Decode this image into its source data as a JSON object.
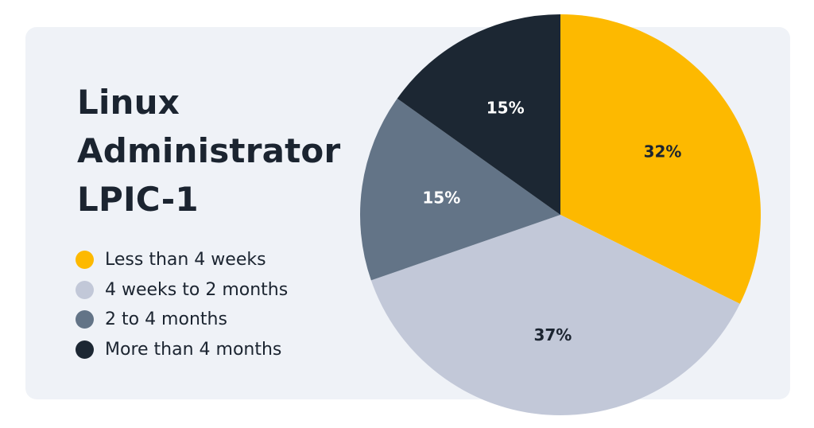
{
  "chart_data": {
    "type": "pie",
    "title": [
      "Linux",
      "Administrator",
      "LPIC-1"
    ],
    "slices": [
      {
        "label": "Less than 4 weeks",
        "value": 32,
        "display": "32%",
        "color": "#fdb900",
        "text_color": "#1b2430"
      },
      {
        "label": "4 weeks to 2 months",
        "value": 37,
        "display": "37%",
        "color": "#c2c8d8",
        "text_color": "#1b2430"
      },
      {
        "label": "2 to 4 months",
        "value": 15,
        "display": "15%",
        "color": "#637487",
        "text_color": "#ffffff"
      },
      {
        "label": "More than 4 months",
        "value": 15,
        "display": "15%",
        "color": "#1c2733",
        "text_color": "#ffffff"
      }
    ],
    "start_angle_deg": 0,
    "direction": "clockwise",
    "legend_placement": "left"
  }
}
